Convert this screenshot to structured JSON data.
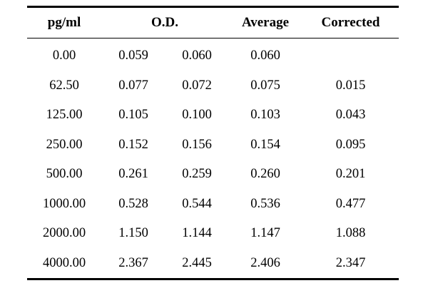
{
  "table": {
    "headers": {
      "pg": "pg/ml",
      "od": "O.D.",
      "average": "Average",
      "corrected": "Corrected"
    },
    "rows": [
      {
        "pg": "0.00",
        "od1": "0.059",
        "od2": "0.060",
        "average": "0.060",
        "corrected": ""
      },
      {
        "pg": "62.50",
        "od1": "0.077",
        "od2": "0.072",
        "average": "0.075",
        "corrected": "0.015"
      },
      {
        "pg": "125.00",
        "od1": "0.105",
        "od2": "0.100",
        "average": "0.103",
        "corrected": "0.043"
      },
      {
        "pg": "250.00",
        "od1": "0.152",
        "od2": "0.156",
        "average": "0.154",
        "corrected": "0.095"
      },
      {
        "pg": "500.00",
        "od1": "0.261",
        "od2": "0.259",
        "average": "0.260",
        "corrected": "0.201"
      },
      {
        "pg": "1000.00",
        "od1": "0.528",
        "od2": "0.544",
        "average": "0.536",
        "corrected": "0.477"
      },
      {
        "pg": "2000.00",
        "od1": "1.150",
        "od2": "1.144",
        "average": "1.147",
        "corrected": "1.088"
      },
      {
        "pg": "4000.00",
        "od1": "2.367",
        "od2": "2.445",
        "average": "2.406",
        "corrected": "2.347"
      }
    ]
  }
}
